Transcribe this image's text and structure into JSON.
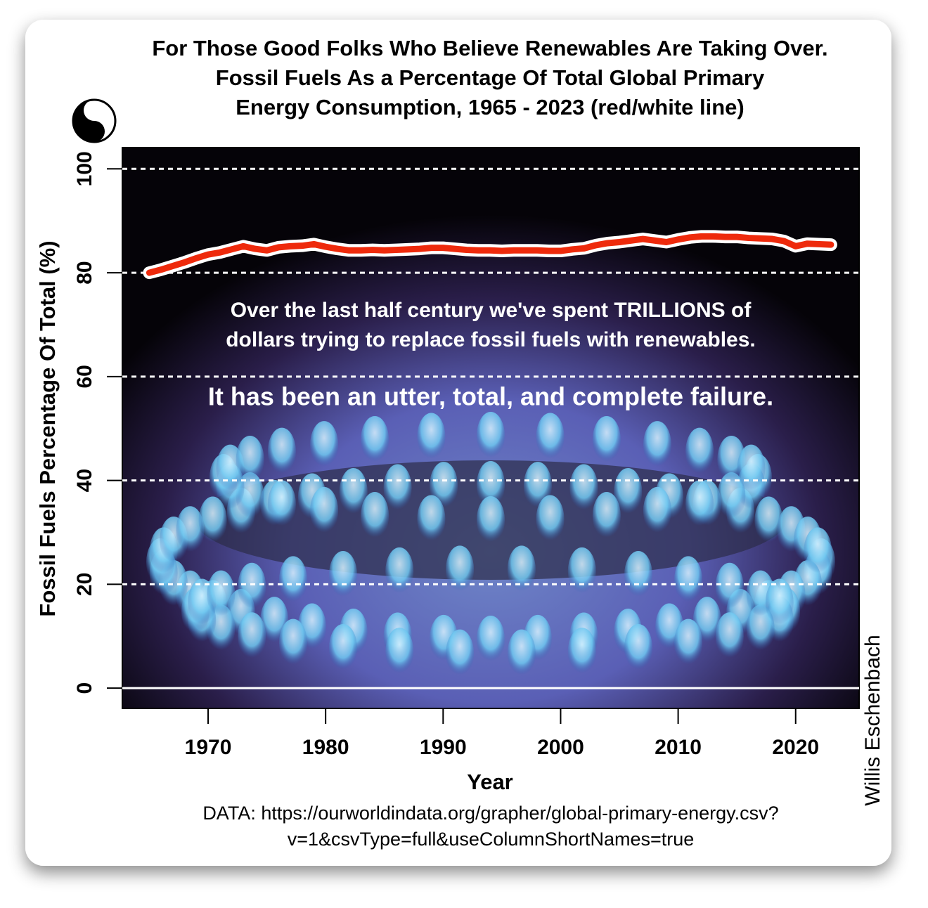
{
  "chart_data": {
    "type": "line",
    "title_lines": [
      "For Those Good Folks Who Believe Renewables Are Taking Over.",
      "Fossil Fuels As a Percentage Of Total Global Primary",
      "Energy Consumption, 1965 - 2023 (red/white line)"
    ],
    "x_label": "Year",
    "y_label": "Fossil Fuels Percentage Of Total (%)",
    "annotations": [
      "Over the last half century we've spent TRILLIONS of",
      "dollars trying to replace fossil fuels with renewables.",
      "It has been an utter, total, and complete failure."
    ],
    "source_lines": [
      "DATA: https://ourworldindata.org/grapher/global-primary-energy.csv?",
      "v=1&csvType=full&useColumnShortNames=true"
    ],
    "author": "Willis Eschenbach",
    "x": [
      1965,
      1966,
      1967,
      1968,
      1969,
      1970,
      1971,
      1972,
      1973,
      1974,
      1975,
      1976,
      1977,
      1978,
      1979,
      1980,
      1981,
      1982,
      1983,
      1984,
      1985,
      1986,
      1987,
      1988,
      1989,
      1990,
      1991,
      1992,
      1993,
      1994,
      1995,
      1996,
      1997,
      1998,
      1999,
      2000,
      2001,
      2002,
      2003,
      2004,
      2005,
      2006,
      2007,
      2008,
      2009,
      2010,
      2011,
      2012,
      2013,
      2014,
      2015,
      2016,
      2017,
      2018,
      2019,
      2020,
      2021,
      2022,
      2023
    ],
    "series": [
      {
        "color": "#ee2a0c",
        "outline": "#ffffff",
        "values": [
          80.0,
          80.6,
          81.3,
          82.0,
          82.8,
          83.5,
          83.9,
          84.5,
          85.1,
          84.6,
          84.3,
          84.9,
          85.1,
          85.2,
          85.5,
          85.0,
          84.6,
          84.3,
          84.3,
          84.4,
          84.3,
          84.4,
          84.5,
          84.6,
          84.8,
          84.8,
          84.6,
          84.4,
          84.3,
          84.3,
          84.2,
          84.3,
          84.3,
          84.3,
          84.2,
          84.2,
          84.5,
          84.7,
          85.3,
          85.7,
          85.9,
          86.2,
          86.5,
          86.2,
          85.9,
          86.4,
          86.8,
          87.0,
          87.0,
          86.9,
          86.9,
          86.7,
          86.6,
          86.5,
          86.1,
          85.1,
          85.6,
          85.5,
          85.4
        ]
      }
    ],
    "xlim": [
      1962.7,
      2025.4
    ],
    "ylim": [
      -3.9,
      104.1
    ],
    "xticks": [
      1970,
      1980,
      1990,
      2000,
      2010,
      2020
    ],
    "yticks": [
      0,
      20,
      40,
      60,
      80,
      100
    ],
    "grid": true
  }
}
